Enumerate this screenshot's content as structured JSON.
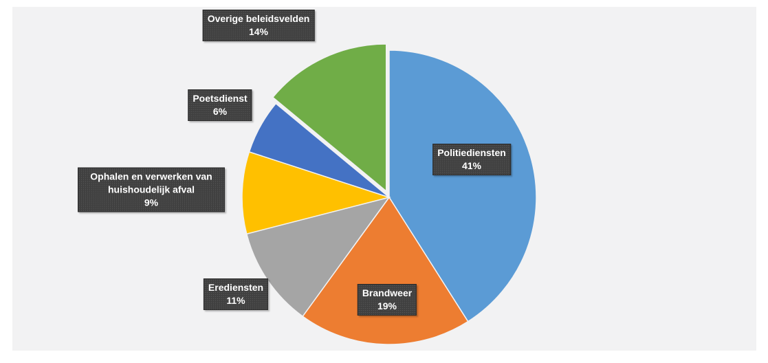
{
  "chart_data": {
    "type": "pie",
    "categories": [
      "Politiediensten",
      "Brandweer",
      "Erediensten",
      "Ophalen en verwerken van huishoudelijk afval",
      "Poetsdienst",
      "Overige beleidsvelden"
    ],
    "values": [
      41,
      19,
      11,
      9,
      6,
      14
    ],
    "value_labels": [
      "41%",
      "19%",
      "11%",
      "9%",
      "6%",
      "14%"
    ],
    "colors": [
      "#5b9bd5",
      "#ed7d31",
      "#a5a5a5",
      "#ffc000",
      "#4472c4",
      "#70ad47"
    ],
    "exploded": [
      5
    ]
  }
}
